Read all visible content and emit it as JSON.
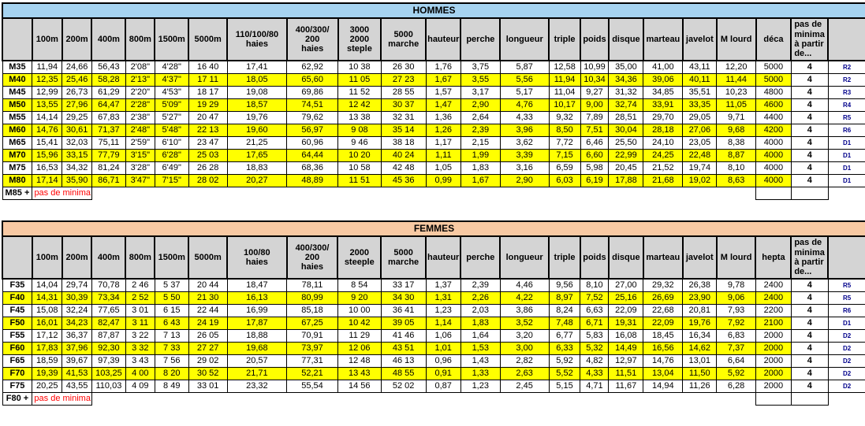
{
  "colors": {
    "hommes_title_bg": "#A6D3F0",
    "femmes_title_bg": "#F8C9A3",
    "header_bg": "#D4D4D4",
    "highlight_bg": "#FFFF00",
    "code_text_color": "#00008B",
    "no_minima_text_color": "#FF0000",
    "border_color": "#000000"
  },
  "tables": [
    {
      "name": "hommes",
      "title": "HOMMES",
      "title_bg": "#A6D3F0",
      "columns": [
        "",
        "100m",
        "200m",
        "400m",
        "800m",
        "1500m",
        "5000m",
        "110/100/80\nhaies",
        "400/300/\n200\nhaies",
        "3000\n2000\nsteple",
        "5000\nmarche",
        "hauteur",
        "perche",
        "longueur",
        "triple",
        "poids",
        "disque",
        "marteau",
        "javelot",
        "M lourd",
        "déca",
        "pas de\nminima\nà partir\nde...",
        ""
      ],
      "rows": [
        {
          "label": "M35",
          "highlight": false,
          "values": [
            "11,94",
            "24,66",
            "56,43",
            "2'08\"",
            "4'28\"",
            "16 40",
            "17,41",
            "62,92",
            "10 38",
            "26 30",
            "1,76",
            "3,75",
            "5,87",
            "12,58",
            "10,99",
            "35,00",
            "41,00",
            "43,11",
            "12,20",
            "5000"
          ],
          "minima": "4",
          "code": "R2"
        },
        {
          "label": "M40",
          "highlight": true,
          "values": [
            "12,35",
            "25,46",
            "58,28",
            "2'13\"",
            "4'37\"",
            "17 11",
            "18,05",
            "65,60",
            "11 05",
            "27 23",
            "1,67",
            "3,55",
            "5,56",
            "11,94",
            "10,34",
            "34,36",
            "39,06",
            "40,11",
            "11,44",
            "5000"
          ],
          "minima": "4",
          "code": "R2"
        },
        {
          "label": "M45",
          "highlight": false,
          "values": [
            "12,99",
            "26,73",
            "61,29",
            "2'20\"",
            "4'53\"",
            "18 17",
            "19,08",
            "69,86",
            "11 52",
            "28 55",
            "1,57",
            "3,17",
            "5,17",
            "11,04",
            "9,27",
            "31,32",
            "34,85",
            "35,51",
            "10,23",
            "4800"
          ],
          "minima": "4",
          "code": "R3"
        },
        {
          "label": "M50",
          "highlight": true,
          "values": [
            "13,55",
            "27,96",
            "64,47",
            "2'28\"",
            "5'09\"",
            "19 29",
            "18,57",
            "74,51",
            "12 42",
            "30 37",
            "1,47",
            "2,90",
            "4,76",
            "10,17",
            "9,00",
            "32,74",
            "33,91",
            "33,35",
            "11,05",
            "4600"
          ],
          "minima": "4",
          "code": "R4"
        },
        {
          "label": "M55",
          "highlight": false,
          "values": [
            "14,14",
            "29,25",
            "67,83",
            "2'38\"",
            "5'27\"",
            "20 47",
            "19,76",
            "79,62",
            "13 38",
            "32 31",
            "1,36",
            "2,64",
            "4,33",
            "9,32",
            "7,89",
            "28,51",
            "29,70",
            "29,05",
            "9,71",
            "4400"
          ],
          "minima": "4",
          "code": "R5"
        },
        {
          "label": "M60",
          "highlight": true,
          "values": [
            "14,76",
            "30,61",
            "71,37",
            "2'48\"",
            "5'48\"",
            "22 13",
            "19,60",
            "56,97",
            "9 08",
            "35 14",
            "1,26",
            "2,39",
            "3,96",
            "8,50",
            "7,51",
            "30,04",
            "28,18",
            "27,06",
            "9,68",
            "4200"
          ],
          "minima": "4",
          "code": "R6"
        },
        {
          "label": "M65",
          "highlight": false,
          "values": [
            "15,41",
            "32,03",
            "75,11",
            "2'59\"",
            "6'10\"",
            "23 47",
            "21,25",
            "60,96",
            "9 46",
            "38 18",
            "1,17",
            "2,15",
            "3,62",
            "7,72",
            "6,46",
            "25,50",
            "24,10",
            "23,05",
            "8,38",
            "4000"
          ],
          "minima": "4",
          "code": "D1"
        },
        {
          "label": "M70",
          "highlight": true,
          "values": [
            "15,96",
            "33,15",
            "77,79",
            "3'15\"",
            "6'28\"",
            "25 03",
            "17,65",
            "64,44",
            "10 20",
            "40 24",
            "1,11",
            "1,99",
            "3,39",
            "7,15",
            "6,60",
            "22,99",
            "24,25",
            "22,48",
            "8,87",
            "4000"
          ],
          "minima": "4",
          "code": "D1"
        },
        {
          "label": "M75",
          "highlight": false,
          "values": [
            "16,53",
            "34,32",
            "81,24",
            "3'28\"",
            "6'49\"",
            "26 28",
            "18,83",
            "68,36",
            "10 58",
            "42 48",
            "1,05",
            "1,83",
            "3,16",
            "6,59",
            "5,98",
            "20,45",
            "21,52",
            "19,74",
            "8,10",
            "4000"
          ],
          "minima": "4",
          "code": "D1"
        },
        {
          "label": "M80",
          "highlight": true,
          "values": [
            "17,14",
            "35,90",
            "86,71",
            "3'47\"",
            "7'15\"",
            "28 02",
            "20,27",
            "48,89",
            "11 51",
            "45 36",
            "0,99",
            "1,67",
            "2,90",
            "6,03",
            "6,19",
            "17,88",
            "21,68",
            "19,02",
            "8,63",
            "4000"
          ],
          "minima": "4",
          "code": "D1"
        }
      ],
      "last_row": {
        "label": "M85 +",
        "text": "pas de minima"
      }
    },
    {
      "name": "femmes",
      "title": "FEMMES",
      "title_bg": "#F8C9A3",
      "columns": [
        "",
        "100m",
        "200m",
        "400m",
        "800m",
        "1500m",
        "5000m",
        "100/80\nhaies",
        "400/300/\n200\nhaies",
        "2000\nsteeple",
        "5000\nmarche",
        "hauteur",
        "perche",
        "longueur",
        "triple",
        "poids",
        "disque",
        "marteau",
        "javelot",
        "M lourd",
        "hepta",
        "pas de\nminima\nà partir\nde...",
        ""
      ],
      "rows": [
        {
          "label": "F35",
          "highlight": false,
          "values": [
            "14,04",
            "29,74",
            "70,78",
            "2 46",
            "5 37",
            "20 44",
            "18,47",
            "78,11",
            "8 54",
            "33 17",
            "1,37",
            "2,39",
            "4,46",
            "9,56",
            "8,10",
            "27,00",
            "29,32",
            "26,38",
            "9,78",
            "2400"
          ],
          "minima": "4",
          "code": "R5"
        },
        {
          "label": "F40",
          "highlight": true,
          "values": [
            "14,31",
            "30,39",
            "73,34",
            "2 52",
            "5 50",
            "21 30",
            "16,13",
            "80,99",
            "9 20",
            "34 30",
            "1,31",
            "2,26",
            "4,22",
            "8,97",
            "7,52",
            "25,16",
            "26,69",
            "23,90",
            "9,06",
            "2400"
          ],
          "minima": "4",
          "code": "R5"
        },
        {
          "label": "F45",
          "highlight": false,
          "values": [
            "15,08",
            "32,24",
            "77,65",
            "3 01",
            "6 15",
            "22 44",
            "16,99",
            "85,18",
            "10 00",
            "36 41",
            "1,23",
            "2,03",
            "3,86",
            "8,24",
            "6,63",
            "22,09",
            "22,68",
            "20,81",
            "7,93",
            "2200"
          ],
          "minima": "4",
          "code": "R6"
        },
        {
          "label": "F50",
          "highlight": true,
          "values": [
            "16,01",
            "34,23",
            "82,47",
            "3 11",
            "6 43",
            "24 19",
            "17,87",
            "67,25",
            "10 42",
            "39 05",
            "1,14",
            "1,83",
            "3,52",
            "7,48",
            "6,71",
            "19,31",
            "22,09",
            "19,76",
            "7,92",
            "2100"
          ],
          "minima": "4",
          "code": "D1"
        },
        {
          "label": "F55",
          "highlight": false,
          "values": [
            "17,12",
            "36,37",
            "87,87",
            "3 22",
            "7 13",
            "26 05",
            "18,88",
            "70,91",
            "11 29",
            "41 46",
            "1,06",
            "1,64",
            "3,20",
            "6,77",
            "5,83",
            "16,08",
            "18,45",
            "16,34",
            "6,83",
            "2000"
          ],
          "minima": "4",
          "code": "D2"
        },
        {
          "label": "F60",
          "highlight": true,
          "values": [
            "17,83",
            "37,96",
            "92,30",
            "3 32",
            "7 33",
            "27 27",
            "19,68",
            "73,97",
            "12 06",
            "43 51",
            "1,01",
            "1,53",
            "3,00",
            "6,33",
            "5,32",
            "14,49",
            "16,56",
            "14,62",
            "7,37",
            "2000"
          ],
          "minima": "4",
          "code": "D2"
        },
        {
          "label": "F65",
          "highlight": false,
          "values": [
            "18,59",
            "39,67",
            "97,39",
            "3 43",
            "7 56",
            "29 02",
            "20,57",
            "77,31",
            "12 48",
            "46 13",
            "0,96",
            "1,43",
            "2,82",
            "5,92",
            "4,82",
            "12,97",
            "14,76",
            "13,01",
            "6,64",
            "2000"
          ],
          "minima": "4",
          "code": "D2"
        },
        {
          "label": "F70",
          "highlight": true,
          "values": [
            "19,39",
            "41,53",
            "103,25",
            "4 00",
            "8 20",
            "30 52",
            "21,71",
            "52,21",
            "13 43",
            "48 55",
            "0,91",
            "1,33",
            "2,63",
            "5,52",
            "4,33",
            "11,51",
            "13,04",
            "11,50",
            "5,92",
            "2000"
          ],
          "minima": "4",
          "code": "D2"
        },
        {
          "label": "F75",
          "highlight": false,
          "values": [
            "20,25",
            "43,55",
            "110,03",
            "4 09",
            "8 49",
            "33 01",
            "23,32",
            "55,54",
            "14 56",
            "52 02",
            "0,87",
            "1,23",
            "2,45",
            "5,15",
            "4,71",
            "11,67",
            "14,94",
            "11,26",
            "6,28",
            "2000"
          ],
          "minima": "4",
          "code": "D2"
        }
      ],
      "last_row": {
        "label": "F80 +",
        "text": "pas de minima"
      }
    }
  ]
}
